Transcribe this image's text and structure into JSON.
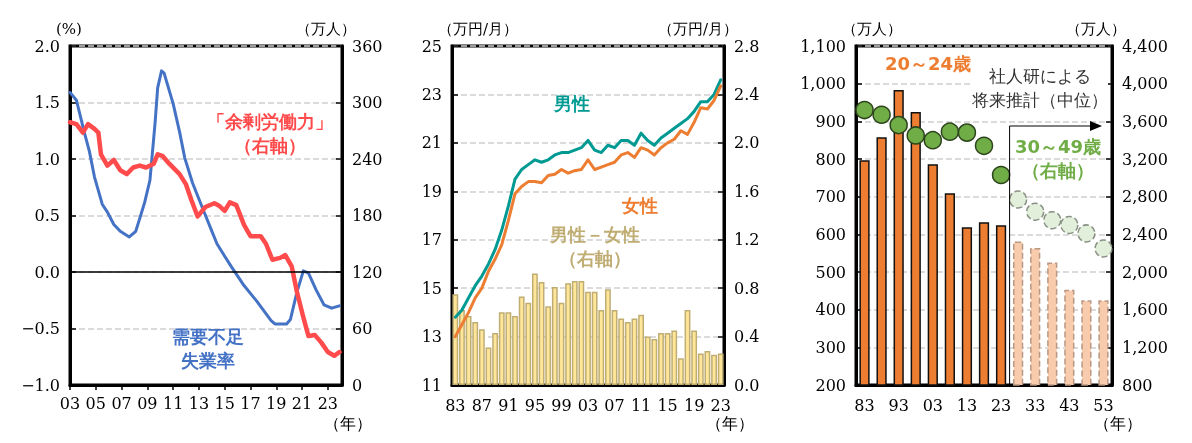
{
  "chart_data": [
    {
      "type": "line",
      "xlabel": "（年）",
      "ylabel": "(%)",
      "y2label": "（万人）",
      "xlim": [
        2003,
        2024.1
      ],
      "xticks": [
        {
          "value": 2003,
          "label": "03"
        },
        {
          "value": 2005,
          "label": "05"
        },
        {
          "value": 2007,
          "label": "07"
        },
        {
          "value": 2009,
          "label": "09"
        },
        {
          "value": 2011,
          "label": "11"
        },
        {
          "value": 2013,
          "label": "13"
        },
        {
          "value": 2015,
          "label": "15"
        },
        {
          "value": 2017,
          "label": "17"
        },
        {
          "value": 2019,
          "label": "19"
        },
        {
          "value": 2021,
          "label": "21"
        },
        {
          "value": 2023,
          "label": "23"
        }
      ],
      "ylim": [
        -1,
        2
      ],
      "yticks": [
        {
          "value": -1,
          "label": "−1.0"
        },
        {
          "value": -0.5,
          "label": "−0.5"
        },
        {
          "value": 0,
          "label": "0.0"
        },
        {
          "value": 0.5,
          "label": "0.5"
        },
        {
          "value": 1,
          "label": "1.0"
        },
        {
          "value": 1.5,
          "label": "1.5"
        },
        {
          "value": 2,
          "label": "2.0"
        }
      ],
      "y2lim": [
        0,
        360
      ],
      "y2ticks": [
        0,
        60,
        120,
        180,
        240,
        300,
        360
      ],
      "grid": "y",
      "ref_lines": [
        {
          "axis": "y",
          "value": 0,
          "color": "#000000"
        }
      ],
      "series": [
        {
          "name": "需要不足失業率",
          "color": "#4472c4",
          "x": [
            2003.0,
            2003.5,
            2004.1,
            2004.5,
            2004.9,
            2005.5,
            2005.9,
            2006.4,
            2006.9,
            2007.6,
            2008.1,
            2008.4,
            2008.8,
            2009.2,
            2009.6,
            2009.8,
            2010.1,
            2010.3,
            2011.0,
            2011.5,
            2011.9,
            2012.5,
            2013.3,
            2013.9,
            2014.4,
            2015.0,
            2015.5,
            2016.5,
            2017.5,
            2018.6,
            2018.9,
            2019.8,
            2020.1,
            2020.6,
            2021.1,
            2021.5,
            2022.1,
            2022.7,
            2023.3,
            2023.9
          ],
          "values": [
            1.59,
            1.52,
            1.24,
            1.07,
            0.84,
            0.6,
            0.53,
            0.42,
            0.36,
            0.31,
            0.36,
            0.47,
            0.62,
            0.81,
            1.32,
            1.63,
            1.78,
            1.76,
            1.49,
            1.24,
            1.01,
            0.79,
            0.56,
            0.39,
            0.25,
            0.14,
            0.05,
            -0.12,
            -0.26,
            -0.43,
            -0.46,
            -0.46,
            -0.42,
            -0.18,
            0.01,
            -0.01,
            -0.16,
            -0.29,
            -0.32,
            -0.3
          ]
        },
        {
          "name": "「余剰労働力」（右軸）",
          "color": "#ff4b4b",
          "axis": "y2",
          "x": [
            2003.0,
            2003.5,
            2004.0,
            2004.4,
            2004.9,
            2005.2,
            2005.4,
            2005.9,
            2006.4,
            2006.9,
            2007.4,
            2007.9,
            2008.4,
            2008.9,
            2009.5,
            2009.8,
            2010.2,
            2010.7,
            2011.5,
            2012.0,
            2012.4,
            2012.9,
            2013.5,
            2014.2,
            2014.6,
            2015.0,
            2015.4,
            2015.9,
            2016.5,
            2017.0,
            2017.8,
            2018.2,
            2018.7,
            2019.3,
            2019.7,
            2020.2,
            2020.6,
            2021.1,
            2021.5,
            2022.0,
            2022.5,
            2023.0,
            2023.5,
            2023.9
          ],
          "values": [
            279,
            277,
            268,
            277,
            272,
            268,
            245,
            233,
            239,
            228,
            224,
            231,
            233,
            231,
            235,
            245,
            243,
            235,
            224,
            213,
            197,
            179,
            189,
            193,
            190,
            185,
            194,
            191,
            170,
            158,
            158,
            150,
            133,
            135,
            138,
            126,
            99,
            72,
            52,
            53,
            45,
            35,
            31,
            35
          ]
        }
      ]
    },
    {
      "type": "line",
      "xlabel": "（年）",
      "ylabel": "（万円/月）",
      "y2label": "（万円/月）",
      "categories": [
        "83",
        null,
        null,
        null,
        "87",
        null,
        null,
        null,
        "91",
        null,
        null,
        null,
        "95",
        null,
        null,
        null,
        "99",
        null,
        null,
        null,
        "03",
        null,
        null,
        null,
        "07",
        null,
        null,
        null,
        "11",
        null,
        null,
        null,
        "15",
        null,
        null,
        null,
        "19",
        null,
        null,
        null,
        "23"
      ],
      "ylim": [
        11,
        25
      ],
      "yticks": [
        11,
        13,
        15,
        17,
        19,
        21,
        23,
        25
      ],
      "y2lim": [
        0,
        2.8
      ],
      "y2ticks": [
        {
          "value": 0,
          "label": "0.0"
        },
        {
          "value": 0.4,
          "label": "0.4"
        },
        {
          "value": 0.8,
          "label": "0.8"
        },
        {
          "value": 1.2,
          "label": "1.2"
        },
        {
          "value": 1.6,
          "label": "1.6"
        },
        {
          "value": 2,
          "label": "2.0"
        },
        {
          "value": 2.4,
          "label": "2.4"
        },
        {
          "value": 2.8,
          "label": "2.8"
        }
      ],
      "grid": "y",
      "series": [
        {
          "name": "男性－女性（右軸）",
          "type": "bar",
          "color": "#ffe699",
          "axis": "y2",
          "values": [
            0.75,
            0.62,
            0.57,
            0.52,
            0.46,
            0.31,
            0.43,
            0.6,
            0.6,
            0.57,
            0.73,
            0.68,
            0.92,
            0.85,
            0.65,
            0.81,
            0.68,
            0.84,
            0.86,
            0.86,
            0.77,
            0.77,
            0.62,
            0.79,
            0.62,
            0.55,
            0.52,
            0.55,
            0.58,
            0.4,
            0.38,
            0.43,
            0.43,
            0.45,
            0.22,
            0.62,
            0.45,
            0.26,
            0.28,
            0.25,
            0.26
          ]
        },
        {
          "name": "男性",
          "color": "#009a93",
          "values": [
            13.8,
            14.1,
            14.6,
            15.1,
            15.5,
            16.0,
            16.6,
            17.4,
            18.4,
            19.5,
            19.9,
            20.1,
            20.3,
            20.2,
            20.3,
            20.5,
            20.6,
            20.6,
            20.7,
            20.8,
            21.1,
            20.7,
            20.6,
            20.9,
            20.8,
            21.1,
            21.1,
            20.9,
            21.4,
            21.1,
            20.9,
            21.2,
            21.4,
            21.6,
            21.8,
            22.0,
            22.3,
            22.7,
            22.7,
            23.0,
            23.6
          ]
        },
        {
          "name": "女性",
          "color": "#ed7d31",
          "values": [
            13.0,
            13.5,
            14.0,
            14.6,
            15.0,
            15.7,
            16.2,
            16.8,
            17.8,
            18.9,
            19.2,
            19.4,
            19.4,
            19.35,
            19.65,
            19.7,
            19.9,
            19.75,
            19.85,
            19.9,
            20.3,
            19.9,
            20.0,
            20.1,
            20.2,
            20.5,
            20.6,
            20.4,
            20.8,
            20.7,
            20.5,
            20.8,
            21.0,
            21.15,
            21.5,
            21.35,
            21.85,
            22.45,
            22.4,
            22.75,
            23.35
          ]
        }
      ]
    },
    {
      "type": "bar",
      "xlabel": "（年）",
      "ylabel": "（万人）",
      "y2label": "（万人）",
      "marker": "circle",
      "categories": [
        "83",
        null,
        "93",
        null,
        "03",
        null,
        "13",
        null,
        "23",
        null,
        "33",
        null,
        "43",
        null,
        "53"
      ],
      "ylim": [
        200,
        1100
      ],
      "yticks": [
        200,
        300,
        400,
        500,
        600,
        700,
        800,
        900,
        {
          "value": 1000,
          "label": "1,000"
        },
        {
          "value": 1100,
          "label": "1,100"
        }
      ],
      "y2lim": [
        800,
        4400
      ],
      "y2ticks": [
        800,
        {
          "value": 1200,
          "label": "1,200"
        },
        {
          "value": 1600,
          "label": "1,600"
        },
        {
          "value": 2000,
          "label": "2,000"
        },
        {
          "value": 2400,
          "label": "2,400"
        },
        {
          "value": 2800,
          "label": "2,800"
        },
        {
          "value": 3200,
          "label": "3,200"
        },
        {
          "value": 3600,
          "label": "3,600"
        },
        {
          "value": 4000,
          "label": "4,000"
        },
        {
          "value": 4400,
          "label": "4,400"
        }
      ],
      "grid": "y",
      "annotations": [
        "社人研による将来推計（中位）"
      ],
      "series": [
        {
          "name": "20～24歳",
          "color": "#ed7d31",
          "values": [
            797,
            858,
            983,
            925,
            786,
            709,
            619,
            632,
            624,
            null,
            null,
            null,
            null,
            null,
            null
          ]
        },
        {
          "color": "#f8cbad",
          "line_style": "dashed",
          "values": [
            null,
            null,
            null,
            null,
            null,
            null,
            null,
            null,
            null,
            581,
            564,
            525,
            453,
            425,
            425
          ]
        },
        {
          "name": "30～49歳（右軸）",
          "type": "scatter",
          "color": "#70ad47",
          "axis": "y2",
          "values": [
            3720,
            3670,
            3560,
            3450,
            3400,
            3490,
            3480,
            3340,
            3030,
            null,
            null,
            null,
            null,
            null,
            null
          ]
        },
        {
          "type": "scatter",
          "color": "#e2efda",
          "axis": "y2",
          "line_style": "dashed",
          "values": [
            null,
            null,
            null,
            null,
            null,
            null,
            null,
            null,
            null,
            2770,
            2640,
            2550,
            2500,
            2410,
            2250
          ]
        }
      ]
    }
  ]
}
